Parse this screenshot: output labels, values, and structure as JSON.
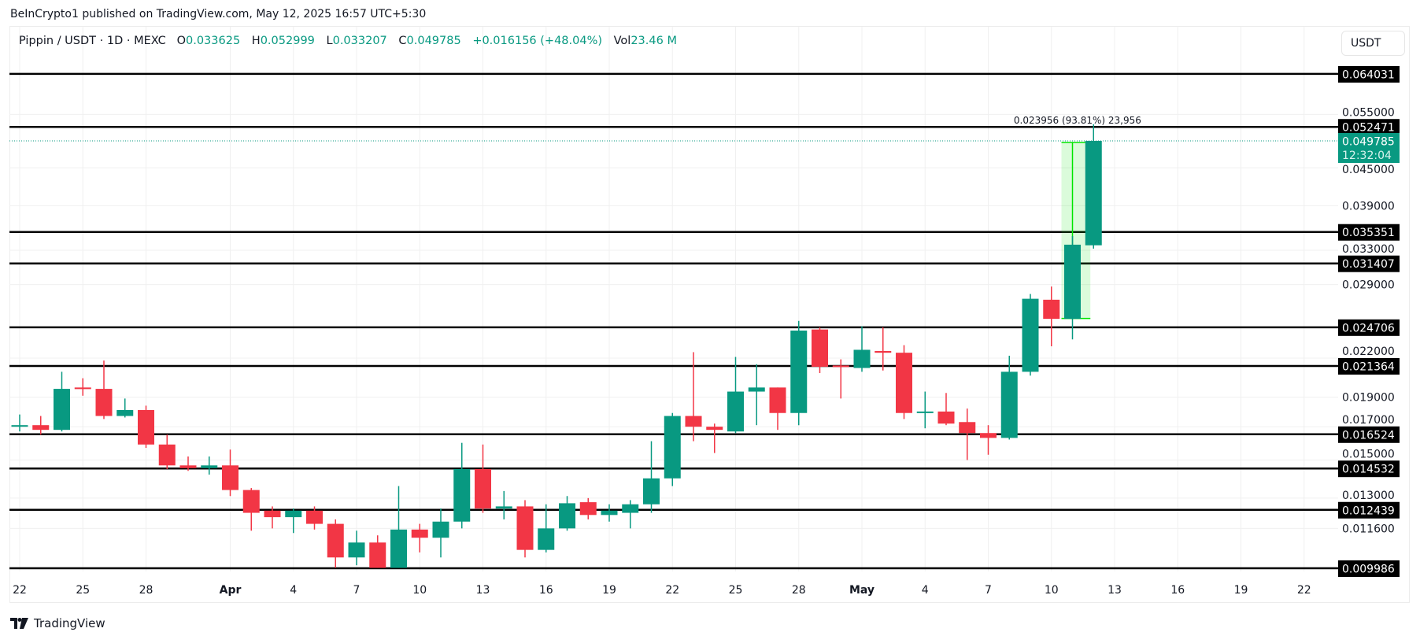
{
  "header": {
    "published": "BeInCrypto1 published on TradingView.com, May 12, 2025 16:57 UTC+5:30"
  },
  "legend": {
    "symbol": "Pippin / USDT · 1D · MEXC",
    "open_label": "O",
    "open": "0.033625",
    "high_label": "H",
    "high": "0.052999",
    "low_label": "L",
    "low": "0.033207",
    "close_label": "C",
    "close": "0.049785",
    "change": "+0.016156 (+48.04%)",
    "vol_label": "Vol",
    "vol": "23.46 M"
  },
  "currency_button": "USDT",
  "footer": {
    "brand": "TradingView"
  },
  "colors": {
    "up": "#089981",
    "down": "#F23645",
    "level": "#000000",
    "measure": "#00e600"
  },
  "chart_data": {
    "type": "candlestick",
    "y_scale": "log",
    "ylim": [
      0.009986,
      0.064031
    ],
    "grid": true,
    "y_ticks": [
      "0.055000",
      "0.045000",
      "0.039000",
      "0.033000",
      "0.029000",
      "0.022000",
      "0.019000",
      "0.017000",
      "0.015000",
      "0.013000",
      "0.011600"
    ],
    "x_ticks": [
      {
        "label": "22",
        "date": "2025-03-22"
      },
      {
        "label": "25",
        "date": "2025-03-25"
      },
      {
        "label": "28",
        "date": "2025-03-28"
      },
      {
        "label": "Apr",
        "date": "2025-04-01",
        "bold": true
      },
      {
        "label": "4",
        "date": "2025-04-04"
      },
      {
        "label": "7",
        "date": "2025-04-07"
      },
      {
        "label": "10",
        "date": "2025-04-10"
      },
      {
        "label": "13",
        "date": "2025-04-13"
      },
      {
        "label": "16",
        "date": "2025-04-16"
      },
      {
        "label": "19",
        "date": "2025-04-19"
      },
      {
        "label": "22",
        "date": "2025-04-22"
      },
      {
        "label": "25",
        "date": "2025-04-25"
      },
      {
        "label": "28",
        "date": "2025-04-28"
      },
      {
        "label": "May",
        "date": "2025-05-01",
        "bold": true
      },
      {
        "label": "4",
        "date": "2025-05-04"
      },
      {
        "label": "7",
        "date": "2025-05-07"
      },
      {
        "label": "10",
        "date": "2025-05-10"
      },
      {
        "label": "13",
        "date": "2025-05-13"
      },
      {
        "label": "16",
        "date": "2025-05-16"
      },
      {
        "label": "19",
        "date": "2025-05-19"
      },
      {
        "label": "22",
        "date": "2025-05-22"
      }
    ],
    "first_date": "2025-03-22",
    "candles": [
      [
        0.017,
        0.0178,
        0.0167,
        0.0171
      ],
      [
        0.0171,
        0.0177,
        0.0165,
        0.0168
      ],
      [
        0.0168,
        0.0209,
        0.0167,
        0.0196
      ],
      [
        0.0197,
        0.0204,
        0.0191,
        0.0196
      ],
      [
        0.0196,
        0.0218,
        0.0175,
        0.0177
      ],
      [
        0.0177,
        0.0189,
        0.0176,
        0.0181
      ],
      [
        0.0181,
        0.0184,
        0.0157,
        0.0159
      ],
      [
        0.0159,
        0.0165,
        0.0145,
        0.0147
      ],
      [
        0.0147,
        0.0152,
        0.0144,
        0.01455
      ],
      [
        0.01455,
        0.0152,
        0.0142,
        0.0147
      ],
      [
        0.0147,
        0.0156,
        0.0131,
        0.0134
      ],
      [
        0.0134,
        0.0135,
        0.0115,
        0.0123
      ],
      [
        0.0124,
        0.0126,
        0.0116,
        0.0121
      ],
      [
        0.0121,
        0.0125,
        0.0114,
        0.0124
      ],
      [
        0.0124,
        0.0126,
        0.01155,
        0.0118
      ],
      [
        0.0118,
        0.012,
        0.01,
        0.0104
      ],
      [
        0.0104,
        0.0115,
        0.0101,
        0.011
      ],
      [
        0.011,
        0.0113,
        0.01,
        0.01
      ],
      [
        0.01,
        0.0136,
        0.01,
        0.01155
      ],
      [
        0.01155,
        0.0118,
        0.0106,
        0.0112
      ],
      [
        0.0112,
        0.0125,
        0.0104,
        0.0119
      ],
      [
        0.0119,
        0.016,
        0.0116,
        0.0145
      ],
      [
        0.0145,
        0.0159,
        0.0123,
        0.0125
      ],
      [
        0.0125,
        0.01335,
        0.012,
        0.0126
      ],
      [
        0.0126,
        0.0129,
        0.0104,
        0.0107
      ],
      [
        0.0107,
        0.0127,
        0.0106,
        0.0116
      ],
      [
        0.0116,
        0.0131,
        0.0115,
        0.01275
      ],
      [
        0.0128,
        0.013,
        0.012,
        0.0122
      ],
      [
        0.0122,
        0.0127,
        0.0119,
        0.0124
      ],
      [
        0.0123,
        0.0129,
        0.0116,
        0.0127
      ],
      [
        0.0127,
        0.0161,
        0.0123,
        0.014
      ],
      [
        0.014,
        0.0179,
        0.0136,
        0.0177
      ],
      [
        0.0177,
        0.0225,
        0.0161,
        0.017
      ],
      [
        0.017,
        0.0172,
        0.0154,
        0.0168
      ],
      [
        0.0167,
        0.0221,
        0.0166,
        0.0194
      ],
      [
        0.0194,
        0.0215,
        0.0171,
        0.0197
      ],
      [
        0.0197,
        0.0197,
        0.0168,
        0.0179
      ],
      [
        0.0179,
        0.0253,
        0.0171,
        0.0244
      ],
      [
        0.0245,
        0.0247,
        0.0208,
        0.0213
      ],
      [
        0.0214,
        0.0219,
        0.0189,
        0.0213
      ],
      [
        0.0212,
        0.0248,
        0.0209,
        0.0227
      ],
      [
        0.0226,
        0.0247,
        0.021,
        0.02245
      ],
      [
        0.02245,
        0.0231,
        0.0175,
        0.0179
      ],
      [
        0.0179,
        0.0194,
        0.0169,
        0.018
      ],
      [
        0.018,
        0.0193,
        0.0171,
        0.0172
      ],
      [
        0.0173,
        0.0182,
        0.015,
        0.0166
      ],
      [
        0.0166,
        0.0171,
        0.0153,
        0.0163
      ],
      [
        0.0163,
        0.0222,
        0.0162,
        0.0209
      ],
      [
        0.0209,
        0.028,
        0.0206,
        0.0275
      ],
      [
        0.0274,
        0.0288,
        0.023,
        0.0255
      ],
      [
        0.0255,
        0.0348,
        0.0236,
        0.0337
      ],
      [
        0.033625,
        0.052999,
        0.033207,
        0.049785
      ]
    ],
    "levels": [
      "0.064031",
      "0.052471",
      "0.035351",
      "0.031407",
      "0.024706",
      "0.021364",
      "0.016524",
      "0.014532",
      "0.012439",
      "0.009986"
    ],
    "current_price": {
      "value": "0.049785",
      "countdown": "12:32:04"
    },
    "measure": {
      "label": "0.023956 (93.81%) 23,956",
      "from_price": 0.025537,
      "to_price": 0.049493,
      "from_date": "2025-05-11",
      "to_date": "2025-05-12"
    }
  }
}
